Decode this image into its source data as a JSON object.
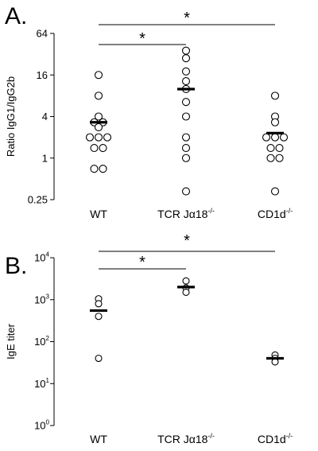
{
  "chart_data": [
    {
      "panel_label": "A.",
      "type": "scatter",
      "ylabel": "Ratio IgG1/IgG2b",
      "yscale": "log",
      "ylim": [
        0.25,
        64
      ],
      "yticks": [
        {
          "value": 64,
          "label": "64"
        },
        {
          "value": 16,
          "label": "16"
        },
        {
          "value": 4,
          "label": "4"
        },
        {
          "value": 1,
          "label": "1"
        },
        {
          "value": 0.25,
          "label": "0.25"
        }
      ],
      "categories": [
        {
          "name": "WT",
          "main": "WT",
          "sup": ""
        },
        {
          "name": "TCR Jα18-/-",
          "main": "TCR Jα18",
          "sup": "-/-"
        },
        {
          "name": "CD1d-/-",
          "main": "CD1d",
          "sup": "-/-"
        }
      ],
      "marker": "open-circle",
      "series": [
        {
          "category": "WT",
          "mean": 3.3,
          "points": [
            16,
            8,
            4,
            3.3,
            3.3,
            2.8,
            2,
            2,
            2,
            1.4,
            1.4,
            0.7,
            0.7
          ]
        },
        {
          "category": "TCR Jα18-/-",
          "mean": 10,
          "points": [
            36,
            28,
            18,
            13,
            10,
            6.5,
            4,
            2,
            1.4,
            1,
            0.33
          ]
        },
        {
          "category": "CD1d-/-",
          "mean": 2.3,
          "points": [
            8,
            4,
            3.3,
            2,
            2,
            2,
            1.4,
            1.4,
            1,
            1,
            0.33
          ]
        }
      ],
      "significance": [
        {
          "from": "WT",
          "to": "TCR Jα18-/-",
          "label": "*"
        },
        {
          "from": "WT",
          "to": "CD1d-/-",
          "label": "*"
        }
      ]
    },
    {
      "panel_label": "B.",
      "type": "scatter",
      "ylabel": "IgE titer",
      "yscale": "log",
      "ylim": [
        1,
        10000
      ],
      "yticks": [
        {
          "value": 10000,
          "base": "10",
          "exp": "4"
        },
        {
          "value": 1000,
          "base": "10",
          "exp": "3"
        },
        {
          "value": 100,
          "base": "10",
          "exp": "2"
        },
        {
          "value": 10,
          "base": "10",
          "exp": "1"
        },
        {
          "value": 1,
          "base": "10",
          "exp": "0"
        }
      ],
      "categories": [
        {
          "name": "WT",
          "main": "WT",
          "sup": ""
        },
        {
          "name": "TCR Jα18-/-",
          "main": "TCR Jα18",
          "sup": "-/-"
        },
        {
          "name": "CD1d-/-",
          "main": "CD1d",
          "sup": "-/-"
        }
      ],
      "marker": "open-circle",
      "series": [
        {
          "category": "WT",
          "mean": 550,
          "points": [
            1050,
            800,
            400,
            40
          ]
        },
        {
          "category": "TCR Jα18-/-",
          "mean": 2000,
          "points": [
            2800,
            1900,
            1500
          ]
        },
        {
          "category": "CD1d-/-",
          "mean": 40,
          "points": [
            48,
            40,
            33
          ]
        }
      ],
      "significance": [
        {
          "from": "WT",
          "to": "TCR Jα18-/-",
          "label": "*"
        },
        {
          "from": "WT",
          "to": "CD1d-/-",
          "label": "*"
        }
      ]
    }
  ]
}
